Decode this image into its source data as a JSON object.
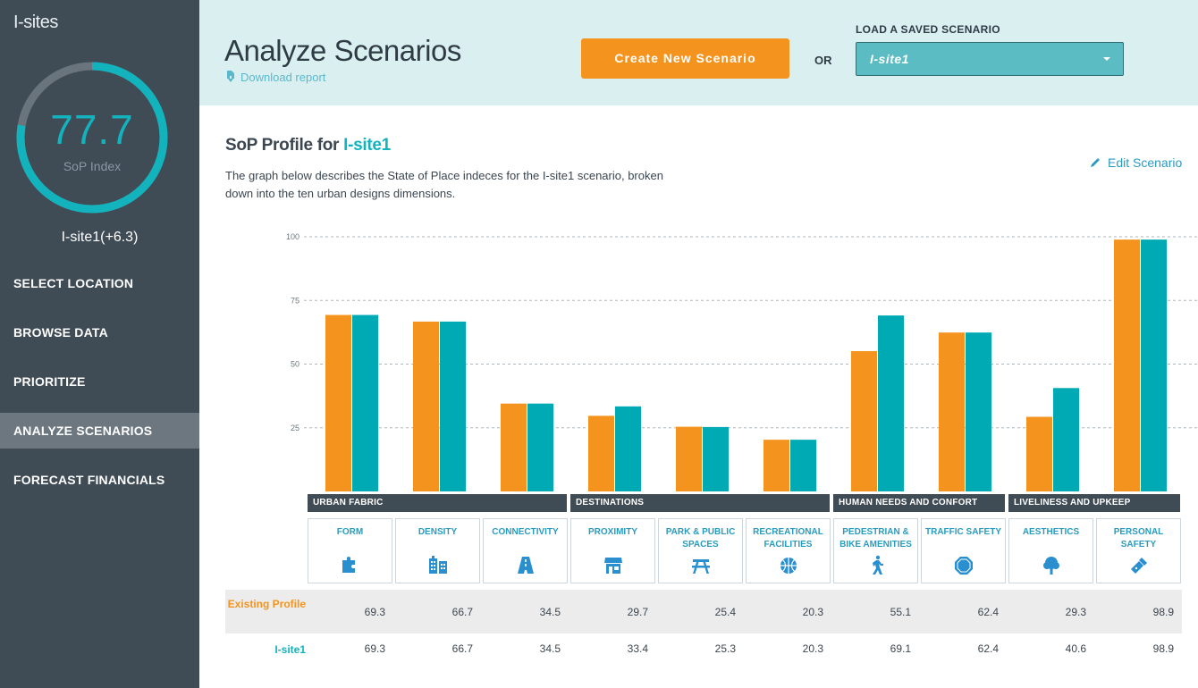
{
  "app": {
    "brand": "I-sites"
  },
  "gauge": {
    "value": "77.7",
    "label": "SoP Index",
    "fraction": 0.777
  },
  "scenario_score": "I-site1(+6.3)",
  "nav": [
    {
      "label": "SELECT LOCATION",
      "active": false
    },
    {
      "label": "BROWSE DATA",
      "active": false
    },
    {
      "label": "PRIORITIZE",
      "active": false
    },
    {
      "label": "ANALYZE SCENARIOS",
      "active": true
    },
    {
      "label": "FORECAST FINANCIALS",
      "active": false
    }
  ],
  "header": {
    "title": "Analyze Scenarios",
    "download_label": "Download report",
    "create_button": "Create New Scenario",
    "or_label": "OR",
    "load_label": "LOAD A SAVED SCENARIO",
    "load_value": "I-site1"
  },
  "profile": {
    "title_prefix": "SoP Profile for ",
    "title_accent": "I-site1",
    "description": "The graph below describes the State of Place indeces for the I-site1 scenario, broken down into the ten urban designs dimensions.",
    "edit_label": "Edit Scenario"
  },
  "colors": {
    "existing": "#f4941e",
    "scenario": "#00aab5",
    "dark": "#3f4b55",
    "accent": "#13b3bd"
  },
  "chart_data": {
    "type": "bar",
    "categories": [
      "FORM",
      "DENSITY",
      "CONNECTIVITY",
      "PROXIMITY",
      "PARK & PUBLIC SPACES",
      "RECREATIONAL FACILITIES",
      "PEDESTRIAN & BIKE AMENITIES",
      "TRAFFIC SAFETY",
      "AESTHETICS",
      "PERSONAL SAFETY"
    ],
    "series": [
      {
        "name": "Existing Profile",
        "values": [
          69.3,
          66.7,
          34.5,
          29.7,
          25.4,
          20.3,
          55.1,
          62.4,
          29.3,
          98.9
        ]
      },
      {
        "name": "I-site1",
        "values": [
          69.3,
          66.7,
          34.5,
          33.4,
          25.3,
          20.3,
          69.1,
          62.4,
          40.6,
          98.9
        ]
      }
    ],
    "yticks": [
      "100",
      "75",
      "50",
      "25"
    ],
    "ylim": [
      0,
      100
    ],
    "grid": true
  },
  "groups": [
    {
      "label": "URBAN FABRIC",
      "span": 3
    },
    {
      "label": "DESTINATIONS",
      "span": 3
    },
    {
      "label": "HUMAN NEEDS AND CONFORT",
      "span": 2
    },
    {
      "label": "LIVELINESS AND UPKEEP",
      "span": 2
    }
  ],
  "dimensions": [
    {
      "label": "FORM",
      "icon": "puzzle-icon"
    },
    {
      "label": "DENSITY",
      "icon": "buildings-icon"
    },
    {
      "label": "CONNECTIVITY",
      "icon": "road-icon"
    },
    {
      "label": "PROXIMITY",
      "icon": "storefront-icon"
    },
    {
      "label": "PARK & PUBLIC SPACES",
      "icon": "picnic-table-icon"
    },
    {
      "label": "RECREATIONAL FACILITIES",
      "icon": "basketball-icon"
    },
    {
      "label": "PEDESTRIAN & BIKE AMENITIES",
      "icon": "pedestrian-icon"
    },
    {
      "label": "TRAFFIC SAFETY",
      "icon": "stop-sign-icon"
    },
    {
      "label": "AESTHETICS",
      "icon": "tree-icon"
    },
    {
      "label": "PERSONAL SAFETY",
      "icon": "flashlight-icon"
    }
  ],
  "table": {
    "existing_label": "Existing Profile",
    "site_label": "I-site1",
    "existing_values": [
      "69.3",
      "66.7",
      "34.5",
      "29.7",
      "25.4",
      "20.3",
      "55.1",
      "62.4",
      "29.3",
      "98.9"
    ],
    "site_values": [
      "69.3",
      "66.7",
      "34.5",
      "33.4",
      "25.3",
      "20.3",
      "69.1",
      "62.4",
      "40.6",
      "98.9"
    ]
  }
}
